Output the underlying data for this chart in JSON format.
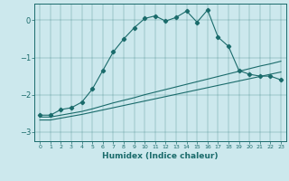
{
  "xlabel": "Humidex (Indice chaleur)",
  "ylabel": "",
  "background_color": "#cce8ed",
  "line_color": "#1a6b6b",
  "xlim": [
    -0.5,
    23.5
  ],
  "ylim": [
    -3.25,
    0.45
  ],
  "yticks": [
    0,
    -1,
    -2,
    -3
  ],
  "xticks": [
    0,
    1,
    2,
    3,
    4,
    5,
    6,
    7,
    8,
    9,
    10,
    11,
    12,
    13,
    14,
    15,
    16,
    17,
    18,
    19,
    20,
    21,
    22,
    23
  ],
  "main_line_x": [
    0,
    1,
    2,
    3,
    4,
    5,
    6,
    7,
    8,
    9,
    10,
    11,
    12,
    13,
    14,
    15,
    16,
    17,
    18,
    19,
    20,
    21,
    22,
    23
  ],
  "main_line_y": [
    -2.55,
    -2.55,
    -2.4,
    -2.35,
    -2.2,
    -1.85,
    -1.35,
    -0.85,
    -0.5,
    -0.2,
    0.05,
    0.12,
    -0.02,
    0.08,
    0.25,
    -0.05,
    0.28,
    -0.45,
    -0.7,
    -1.35,
    -1.45,
    -1.5,
    -1.5,
    -1.6
  ],
  "line2_x": [
    0,
    1,
    2,
    3,
    4,
    5,
    6,
    7,
    8,
    9,
    10,
    11,
    12,
    13,
    14,
    15,
    16,
    17,
    18,
    19,
    20,
    21,
    22,
    23
  ],
  "line2_y": [
    -2.6,
    -2.6,
    -2.55,
    -2.5,
    -2.45,
    -2.38,
    -2.3,
    -2.22,
    -2.15,
    -2.08,
    -2.0,
    -1.93,
    -1.86,
    -1.79,
    -1.72,
    -1.65,
    -1.58,
    -1.51,
    -1.44,
    -1.37,
    -1.3,
    -1.23,
    -1.17,
    -1.1
  ],
  "line3_x": [
    0,
    1,
    2,
    3,
    4,
    5,
    6,
    7,
    8,
    9,
    10,
    11,
    12,
    13,
    14,
    15,
    16,
    17,
    18,
    19,
    20,
    21,
    22,
    23
  ],
  "line3_y": [
    -2.68,
    -2.68,
    -2.63,
    -2.58,
    -2.53,
    -2.47,
    -2.41,
    -2.35,
    -2.29,
    -2.23,
    -2.17,
    -2.11,
    -2.05,
    -1.99,
    -1.93,
    -1.87,
    -1.81,
    -1.75,
    -1.69,
    -1.63,
    -1.57,
    -1.51,
    -1.45,
    -1.39
  ]
}
